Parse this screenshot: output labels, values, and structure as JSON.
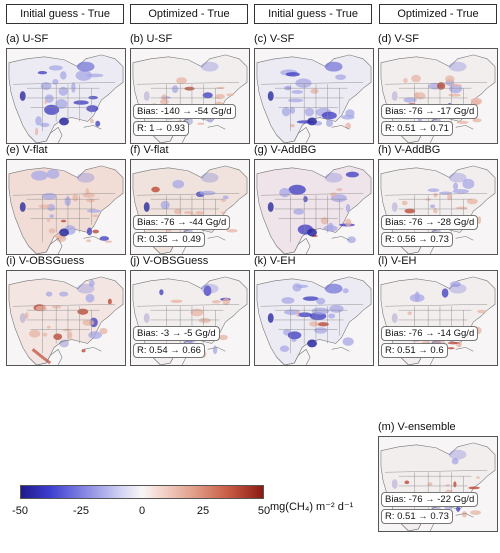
{
  "headers": [
    "Initial guess - True",
    "Optimized - True",
    "Initial guess - True",
    "Optimized - True"
  ],
  "panels": [
    {
      "label": "(a) U-SF",
      "variant": "init"
    },
    {
      "label": "(b) U-SF",
      "variant": "opt",
      "bias": "Bias: -140 → -54 Gg/d",
      "r": "R: 1→ 0.93"
    },
    {
      "label": "(c) V-SF",
      "variant": "init"
    },
    {
      "label": "(d) V-SF",
      "variant": "opt",
      "bias": "Bias: -76 → -17 Gg/d",
      "r": "R: 0.51 → 0.71"
    },
    {
      "label": "(e) V-flat",
      "variant": "flat"
    },
    {
      "label": "(f) V-flat",
      "variant": "flatopt",
      "bias": "Bias: -76 → -44 Gg/d",
      "r": "R: 0.35 → 0.49"
    },
    {
      "label": "(g) V-AddBG",
      "variant": "addbg"
    },
    {
      "label": "(h) V-AddBG",
      "variant": "opt",
      "bias": "Bias: -76 → -28 Gg/d",
      "r": "R: 0.56 → 0.73"
    },
    {
      "label": "(i) V-OBSGuess",
      "variant": "obs"
    },
    {
      "label": "(j) V-OBSGuess",
      "variant": "opt",
      "bias": "Bias: -3 → -5 Gg/d",
      "r": "R: 0.54 → 0.66"
    },
    {
      "label": "(k) V-EH",
      "variant": "init"
    },
    {
      "label": "(l) V-EH",
      "variant": "opt",
      "bias": "Bias: -76 → -14 Gg/d",
      "r": "R: 0.51 → 0.6"
    },
    {
      "label": "(m) V-ensemble",
      "variant": "opt",
      "bias": "Bias: -76 → -22 Gg/d",
      "r": "R: 0.51 → 0.73"
    }
  ],
  "colorbar": {
    "min": -50,
    "max": 50,
    "ticks": [
      "-50",
      "-25",
      "0",
      "25",
      "50"
    ],
    "unit": "mg(CH₄) m⁻² d⁻¹",
    "colors": {
      "neg": "#1f1a8a",
      "zero": "#f8f6f6",
      "pos": "#8c1a12"
    }
  }
}
